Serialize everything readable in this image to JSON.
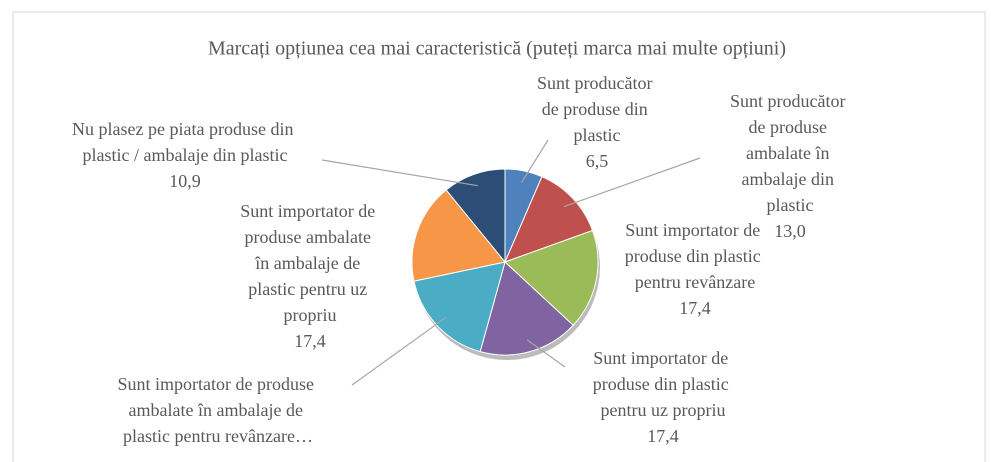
{
  "chart_data": {
    "type": "pie",
    "title": "Marcați opțiunea cea mai caracteristică (puteți marca mai multe opțiuni)",
    "categories": [
      "Sunt producător de produse din plastic",
      "Sunt producător de produse ambalate în ambalaje din plastic",
      "Sunt importator de produse din plastic pentru revânzare",
      "Sunt importator de produse din plastic pentru uz propriu",
      "Sunt importator de produse ambalate în ambalaje de plastic pentru revânzare…",
      "Sunt importator de produse ambalate în ambalaje de plastic pentru uz propriu",
      "Nu plasez pe piata produse din plastic / ambalaje din plastic"
    ],
    "values": [
      6.5,
      13.0,
      17.4,
      17.4,
      17.4,
      17.4,
      10.9
    ],
    "value_labels": [
      "6,5",
      "13,0",
      "17,4",
      "17,4",
      null,
      "17,4",
      "10,9"
    ],
    "colors": [
      "#4f81bd",
      "#c0504d",
      "#9bbb59",
      "#8064a2",
      "#4bacc6",
      "#f79646",
      "#2c4d75"
    ]
  }
}
